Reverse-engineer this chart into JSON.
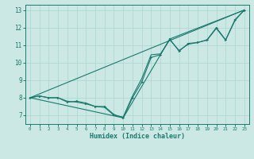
{
  "title": "",
  "xlabel": "Humidex (Indice chaleur)",
  "background_color": "#cce8e4",
  "grid_color": "#b0d8d4",
  "line_color": "#1a7a6e",
  "xlim": [
    -0.5,
    23.5
  ],
  "ylim": [
    6.5,
    13.3
  ],
  "yticks": [
    7,
    8,
    9,
    10,
    11,
    12,
    13
  ],
  "xticks": [
    0,
    1,
    2,
    3,
    4,
    5,
    6,
    7,
    8,
    9,
    10,
    11,
    12,
    13,
    14,
    15,
    16,
    17,
    18,
    19,
    20,
    21,
    22,
    23
  ],
  "line1_x": [
    0,
    1,
    2,
    3,
    4,
    5,
    6,
    7,
    8,
    9,
    10,
    11,
    12,
    13,
    14,
    15,
    16,
    17,
    18,
    19,
    20,
    21,
    22,
    23
  ],
  "line1_y": [
    8.0,
    8.1,
    8.0,
    8.0,
    7.75,
    7.8,
    7.7,
    7.5,
    7.5,
    7.05,
    6.85,
    8.0,
    8.9,
    10.3,
    10.45,
    11.35,
    10.65,
    11.1,
    11.15,
    11.3,
    12.0,
    11.3,
    12.45,
    13.0
  ],
  "line2_x": [
    0,
    1,
    2,
    3,
    4,
    5,
    6,
    7,
    8,
    9,
    10,
    11,
    12,
    13,
    14,
    15,
    16,
    17,
    18,
    19,
    20,
    21,
    22,
    23
  ],
  "line2_y": [
    8.0,
    8.1,
    8.0,
    8.0,
    7.8,
    7.75,
    7.65,
    7.5,
    7.45,
    7.0,
    6.9,
    8.1,
    9.1,
    10.45,
    10.5,
    11.3,
    10.7,
    11.05,
    11.15,
    11.28,
    11.95,
    11.28,
    12.4,
    13.0
  ],
  "line3_x": [
    0,
    23
  ],
  "line3_y": [
    8.0,
    13.0
  ],
  "line4_x": [
    0,
    10,
    15,
    23
  ],
  "line4_y": [
    8.0,
    6.85,
    11.35,
    13.0
  ]
}
